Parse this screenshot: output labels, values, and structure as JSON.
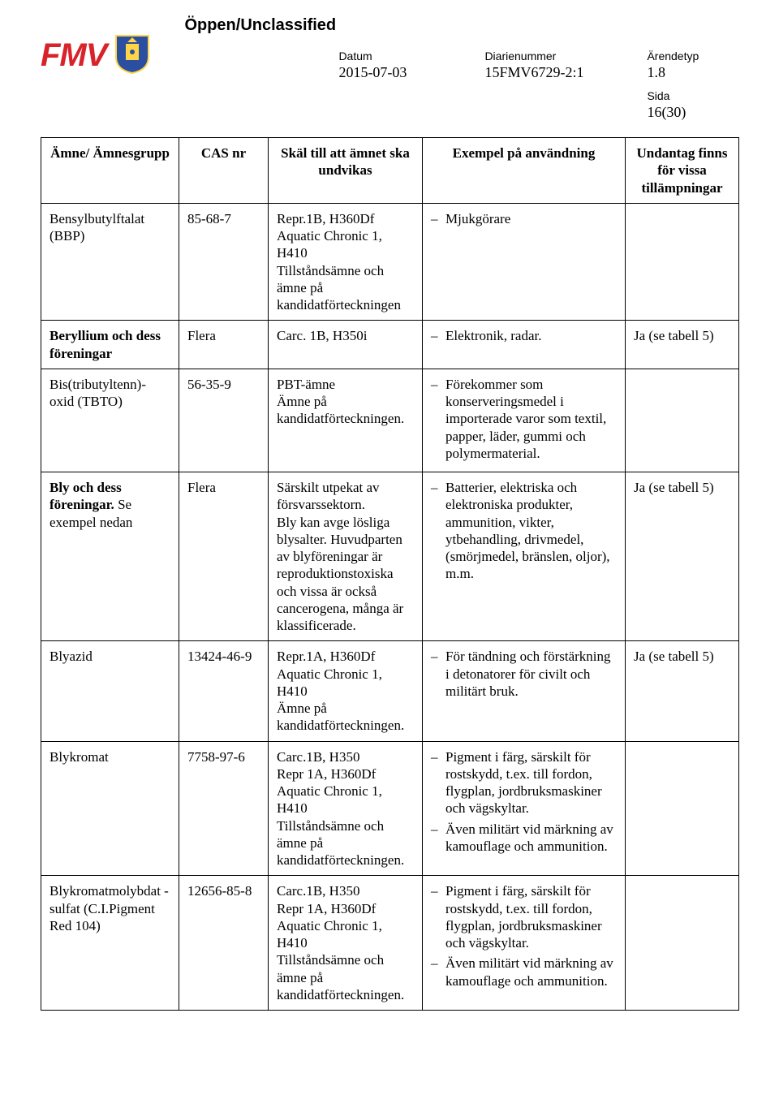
{
  "header": {
    "classification": "Öppen/Unclassified",
    "logo_text": "FMV",
    "meta": {
      "datum_label": "Datum",
      "datum_value": "2015-07-03",
      "diar_label": "Diarienummer",
      "diar_value": "15FMV6729-2:1",
      "arende_label": "Ärendetyp",
      "arende_value": "1.8",
      "sida_label": "Sida",
      "sida_value": "16(30)"
    }
  },
  "table": {
    "headers": {
      "col1": "Ämne/ Ämnesgrupp",
      "col2": "CAS nr",
      "col3": "Skäl till att ämnet ska undvikas",
      "col4": "Exempel på användning",
      "col5": "Undantag finns för vissa tillämpningar"
    },
    "rows": [
      {
        "substance": "Bensylbutylftalat (BBP)",
        "cas": "85-68-7",
        "reason": "Repr.1B, H360Df\nAquatic Chronic 1, H410\nTillståndsämne och ämne på kandidatförteckningen",
        "examples": [
          "Mjukgörare"
        ],
        "exemption": ""
      },
      {
        "substance_html": "<span class='bold'>Beryllium och dess föreningar</span>",
        "cas": "Flera",
        "reason": "Carc. 1B, H350i",
        "examples": [
          "Elektronik, radar."
        ],
        "exemption": "Ja (se tabell 5)"
      },
      {
        "substance": "Bis(tributyltenn)- oxid (TBTO)",
        "cas": "56-35-9",
        "reason": "PBT-ämne\nÄmne på kandidatförteckningen.",
        "examples": [
          "Förekommer som konserveringsmedel i importerade varor som textil, papper, läder, gummi och polymermaterial."
        ],
        "exemption": ""
      },
      {
        "substance_html": "<span class='bold'>Bly och dess föreningar.</span> Se exempel nedan",
        "cas": "Flera",
        "reason": "Särskilt utpekat av försvarssektorn.\nBly kan avge lösliga blysalter. Huvudparten av blyföreningar är reproduktionstoxiska och vissa är också cancerogena, många är klassificerade.",
        "examples": [
          "Batterier, elektriska och elektroniska produkter, ammunition, vikter, ytbehandling, drivmedel, (smörjmedel, bränslen, oljor), m.m."
        ],
        "exemption": "Ja (se tabell 5)"
      },
      {
        "substance": "Blyazid",
        "cas": "13424-46-9",
        "reason": "Repr.1A, H360Df\nAquatic Chronic 1, H410\nÄmne på kandidatförteckningen.",
        "examples": [
          "För tändning och förstärkning i detonatorer för civilt och militärt bruk."
        ],
        "exemption": "Ja (se tabell 5)"
      },
      {
        "substance": "Blykromat",
        "cas": "7758-97-6",
        "reason": "Carc.1B, H350\nRepr 1A, H360Df\nAquatic Chronic 1, H410\nTillståndsämne och ämne på kandidatförteckningen.",
        "examples": [
          "Pigment i färg, särskilt för rostskydd, t.ex. till fordon, flygplan, jordbruksmaskiner och vägskyltar.",
          "Även militärt vid märkning av kamouflage och ammunition."
        ],
        "exemption": ""
      },
      {
        "substance": "Blykromatmolybdat -sulfat (C.I.Pigment Red 104)",
        "cas": "12656-85-8",
        "reason": "Carc.1B, H350\nRepr 1A, H360Df\nAquatic Chronic 1, H410\nTillståndsämne och ämne på kandidatförteckningen.",
        "examples": [
          "Pigment i färg, särskilt för rostskydd, t.ex. till fordon, flygplan, jordbruksmaskiner och vägskyltar.",
          "Även militärt vid märkning av kamouflage och ammunition."
        ],
        "exemption": ""
      }
    ]
  },
  "colors": {
    "logo_red": "#d8232a",
    "crest_blue": "#2a4ea0",
    "crest_yellow": "#ffd447",
    "border": "#000000",
    "text": "#000000",
    "background": "#ffffff"
  }
}
